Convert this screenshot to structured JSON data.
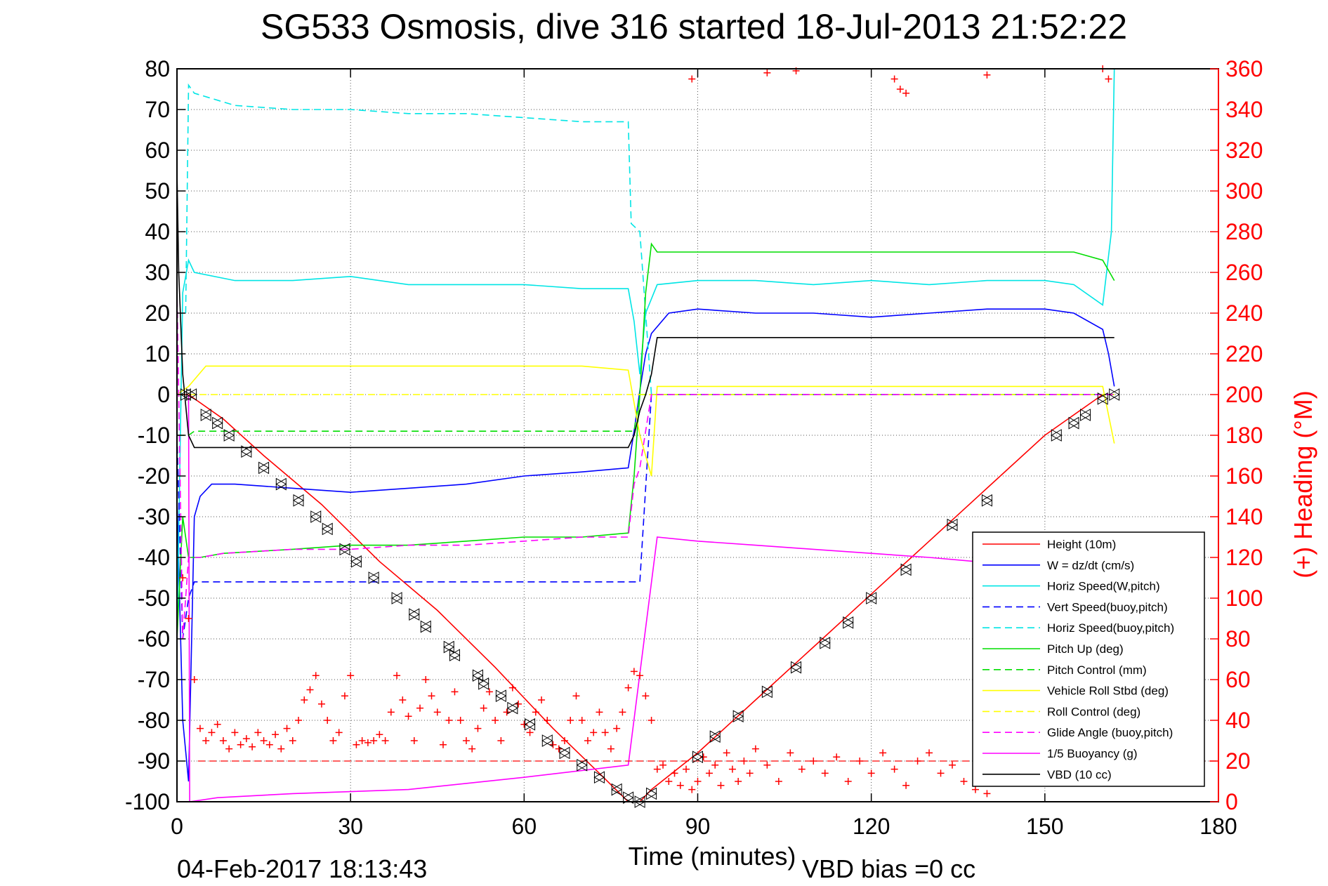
{
  "chart_data": {
    "type": "line",
    "title": "SG533 Osmosis, dive 316 started 18-Jul-2013 21:52:22",
    "xlabel": "Time (minutes)",
    "y2label": "(+) Heading (°M)",
    "timestamp": "04-Feb-2017 18:13:43",
    "vbd_bias": "VBD bias =0 cc",
    "xlim": [
      0,
      180
    ],
    "ylim": [
      -100,
      80
    ],
    "y2lim": [
      0,
      360
    ],
    "x_ticks": [
      "0",
      "30",
      "60",
      "90",
      "120",
      "150",
      "180"
    ],
    "y_ticks": [
      "80",
      "70",
      "60",
      "50",
      "40",
      "30",
      "20",
      "10",
      "0",
      "-10",
      "-20",
      "-30",
      "-40",
      "-50",
      "-60",
      "-70",
      "-80",
      "-90",
      "-100"
    ],
    "y2_ticks": [
      "360",
      "340",
      "320",
      "300",
      "280",
      "260",
      "240",
      "220",
      "200",
      "180",
      "160",
      "140",
      "120",
      "100",
      "80",
      "60",
      "40",
      "20",
      "0"
    ],
    "grid": true,
    "legend_position": "bottom-right",
    "colors": {
      "axis_right": "#ff0000",
      "height": "#ff0000",
      "w": "#0000ff",
      "horiz_w": "#00e5e5",
      "vert_buoy": "#0000ff",
      "horiz_buoy": "#00e5e5",
      "pitch_up": "#00dd00",
      "pitch_ctl": "#00dd00",
      "roll": "#ffff00",
      "roll_ctl": "#ffff00",
      "glide": "#ff00ff",
      "buoyancy": "#ff00ff",
      "vbd": "#000000"
    },
    "series": [
      {
        "name": "Height (10m)",
        "key": "height",
        "dash": false,
        "x": [
          0.5,
          2,
          8,
          15,
          25,
          35,
          45,
          55,
          65,
          73,
          78,
          80,
          82,
          90,
          100,
          110,
          120,
          130,
          140,
          150,
          160,
          162
        ],
        "y": [
          0,
          0,
          -6,
          -15,
          -27,
          -41,
          -53,
          -67,
          -82,
          -93,
          -100,
          -100,
          -97,
          -88,
          -75,
          -62,
          -49,
          -36,
          -23,
          -10,
          0,
          0
        ]
      },
      {
        "name": "W = dz/dt (cm/s)",
        "key": "w",
        "dash": false,
        "x": [
          0,
          1,
          2,
          3,
          4,
          6,
          10,
          20,
          30,
          40,
          50,
          60,
          70,
          78,
          79,
          80,
          81,
          82,
          85,
          90,
          100,
          110,
          120,
          130,
          140,
          150,
          155,
          160,
          161,
          162
        ],
        "y": [
          -25,
          -80,
          -95,
          -30,
          -25,
          -22,
          -22,
          -23,
          -24,
          -23,
          -22,
          -20,
          -19,
          -18,
          -9,
          1,
          10,
          15,
          20,
          21,
          20,
          20,
          19,
          20,
          21,
          21,
          20,
          16,
          10,
          2
        ]
      },
      {
        "name": "Horiz Speed(W,pitch)",
        "key": "horiz_w",
        "dash": false,
        "x": [
          0,
          1,
          2,
          3,
          10,
          20,
          30,
          40,
          50,
          60,
          70,
          78,
          79,
          80,
          81,
          83,
          90,
          100,
          110,
          120,
          130,
          140,
          150,
          155,
          160,
          161.5,
          162
        ],
        "y": [
          -60,
          25,
          33,
          30,
          28,
          28,
          29,
          27,
          27,
          27,
          26,
          26,
          18,
          5,
          20,
          27,
          28,
          28,
          27,
          28,
          27,
          28,
          28,
          27,
          22,
          40,
          80
        ]
      },
      {
        "name": "Vert Speed(buoy,pitch)",
        "key": "vert_buoy",
        "dash": true,
        "x": [
          0,
          1,
          2,
          3,
          6,
          20,
          30,
          40,
          50,
          60,
          70,
          78,
          80,
          82,
          162
        ],
        "y": [
          -10,
          -60,
          -50,
          -46,
          -46,
          -46,
          -46,
          -46,
          -46,
          -46,
          -46,
          -46,
          -46,
          0,
          0
        ]
      },
      {
        "name": "Horiz Speed(buoy,pitch)",
        "key": "horiz_buoy",
        "dash": true,
        "x": [
          1.5,
          2,
          3,
          10,
          20,
          30,
          40,
          50,
          60,
          70,
          78,
          78.5,
          80,
          82
        ],
        "y": [
          20,
          76,
          74,
          71,
          70,
          70,
          69,
          69,
          68,
          67,
          67,
          42,
          40,
          0
        ]
      },
      {
        "name": "Pitch Up (deg)",
        "key": "pitch_up",
        "dash": false,
        "x": [
          0,
          1,
          2,
          3,
          4,
          8,
          20,
          30,
          40,
          50,
          60,
          70,
          78,
          79,
          80,
          81,
          82,
          83,
          90,
          100,
          110,
          120,
          130,
          140,
          150,
          155,
          160,
          162
        ],
        "y": [
          -60,
          -30,
          -40,
          -40,
          -40,
          -39,
          -38,
          -37,
          -37,
          -36,
          -35,
          -35,
          -34,
          -20,
          0,
          25,
          37,
          35,
          35,
          35,
          35,
          35,
          35,
          35,
          35,
          35,
          33,
          28
        ]
      },
      {
        "name": "Pitch Control (mm)",
        "key": "pitch_ctl",
        "dash": true,
        "x": [
          0,
          2,
          3,
          10,
          20,
          30,
          40,
          50,
          60,
          70,
          78,
          79,
          80,
          82,
          162
        ],
        "y": [
          -10,
          -10,
          -9,
          -9,
          -9,
          -9,
          -9,
          -9,
          -9,
          -9,
          -9,
          -9,
          0,
          0,
          0
        ]
      },
      {
        "name": "Vehicle Roll Stbd (deg)",
        "key": "roll",
        "dash": false,
        "x": [
          0,
          2,
          5,
          10,
          20,
          30,
          40,
          50,
          60,
          70,
          78,
          80,
          82,
          83,
          90,
          100,
          110,
          120,
          130,
          140,
          150,
          160,
          162
        ],
        "y": [
          0,
          2,
          7,
          7,
          7,
          7,
          7,
          7,
          7,
          7,
          6,
          -10,
          -20,
          2,
          2,
          2,
          2,
          2,
          2,
          2,
          2,
          2,
          -12
        ]
      },
      {
        "name": "Roll Control (deg)",
        "key": "roll_ctl",
        "dash": true,
        "x": [
          0,
          2,
          5,
          10,
          20,
          30,
          40,
          50,
          60,
          70,
          78,
          80,
          82,
          162
        ],
        "y": [
          0,
          0,
          0,
          0,
          0,
          0,
          0,
          0,
          0,
          0,
          0,
          0,
          0,
          0
        ]
      },
      {
        "name": "Glide Angle (buoy,pitch)",
        "key": "glide",
        "dash": true,
        "x": [
          0,
          1,
          2,
          3,
          4,
          8,
          20,
          30,
          40,
          50,
          60,
          70,
          78,
          79,
          80,
          82,
          162
        ],
        "y": [
          26,
          -60,
          -40,
          -40,
          -40,
          -39,
          -38,
          -38,
          -37,
          -37,
          -36,
          -35,
          -35,
          -22,
          -18,
          0,
          0
        ]
      },
      {
        "name": "1/5 Buoyancy (g)",
        "key": "buoyancy",
        "dash": false,
        "x": [
          2,
          2.2,
          7,
          20,
          40,
          60,
          78,
          83,
          90,
          100,
          110,
          120,
          130,
          138
        ],
        "y": [
          0,
          -100,
          -99,
          -98,
          -97,
          -94,
          -91,
          -35,
          -36,
          -37,
          -38,
          -39,
          -40,
          -41
        ]
      },
      {
        "name": "VBD (10 cc)",
        "key": "vbd",
        "dash": false,
        "x": [
          0,
          0.3,
          1,
          2,
          3,
          10,
          20,
          30,
          40,
          50,
          60,
          70,
          78,
          79,
          80,
          81,
          82,
          83,
          90,
          100,
          110,
          120,
          130,
          140,
          150,
          162
        ],
        "y": [
          55,
          30,
          5,
          -10,
          -13,
          -13,
          -13,
          -13,
          -13,
          -13,
          -13,
          -13,
          -13,
          -10,
          -4,
          0,
          5,
          14,
          14,
          14,
          14,
          14,
          14,
          14,
          14,
          14
        ]
      }
    ],
    "heading": {
      "name": "Heading",
      "marker": "+",
      "reference_level": 20,
      "x": [
        1,
        2,
        3,
        4,
        5,
        6,
        7,
        8,
        9,
        10,
        11,
        12,
        13,
        14,
        15,
        16,
        17,
        18,
        19,
        20,
        21,
        22,
        23,
        24,
        25,
        26,
        27,
        28,
        29,
        30,
        31,
        32,
        33,
        34,
        35,
        36,
        37,
        38,
        39,
        40,
        41,
        42,
        43,
        44,
        45,
        46,
        47,
        48,
        49,
        50,
        51,
        52,
        53,
        54,
        55,
        56,
        57,
        58,
        59,
        60,
        61,
        62,
        63,
        64,
        65,
        66,
        67,
        68,
        69,
        70,
        71,
        72,
        73,
        74,
        75,
        76,
        77,
        78,
        79,
        80,
        81,
        82,
        83,
        84,
        85,
        86,
        87,
        88,
        89,
        90,
        91,
        92,
        93,
        94,
        95,
        96,
        97,
        98,
        99,
        100,
        102,
        104,
        106,
        108,
        110,
        112,
        114,
        116,
        118,
        120,
        122,
        124,
        126,
        128,
        130,
        132,
        134,
        136,
        138,
        140,
        89,
        102,
        107,
        124,
        125,
        126,
        140,
        160,
        161
      ],
      "y": [
        110,
        90,
        60,
        36,
        30,
        34,
        38,
        30,
        26,
        34,
        28,
        31,
        27,
        34,
        30,
        28,
        33,
        26,
        36,
        30,
        40,
        50,
        55,
        62,
        48,
        40,
        30,
        34,
        52,
        62,
        28,
        30,
        29,
        30,
        33,
        30,
        44,
        62,
        50,
        42,
        30,
        46,
        60,
        52,
        44,
        28,
        40,
        54,
        40,
        30,
        26,
        36,
        46,
        54,
        40,
        30,
        44,
        56,
        48,
        38,
        34,
        44,
        50,
        40,
        28,
        26,
        30,
        40,
        52,
        40,
        30,
        34,
        44,
        34,
        26,
        36,
        44,
        56,
        64,
        62,
        52,
        40,
        16,
        18,
        10,
        14,
        8,
        16,
        6,
        10,
        22,
        14,
        18,
        8,
        24,
        16,
        10,
        20,
        14,
        26,
        18,
        10,
        24,
        16,
        20,
        14,
        22,
        10,
        20,
        14,
        24,
        16,
        8,
        20,
        24,
        14,
        18,
        10,
        6,
        4,
        355,
        358,
        359,
        355,
        350,
        348,
        357,
        360,
        355
      ]
    },
    "markers": {
      "name": "Height markers",
      "x": [
        1.5,
        2.5,
        5,
        7,
        9,
        12,
        15,
        18,
        21,
        24,
        26,
        29,
        31,
        34,
        38,
        41,
        43,
        47,
        48,
        52,
        53,
        56,
        58,
        61,
        64,
        67,
        70,
        73,
        76,
        78,
        80,
        82,
        90,
        93,
        97,
        102,
        107,
        112,
        116,
        120,
        126,
        134,
        140,
        152,
        155,
        157,
        160,
        162
      ],
      "y": [
        0,
        0,
        -5,
        -7,
        -10,
        -14,
        -18,
        -22,
        -26,
        -30,
        -33,
        -38,
        -41,
        -45,
        -50,
        -54,
        -57,
        -62,
        -64,
        -69,
        -71,
        -74,
        -77,
        -81,
        -85,
        -88,
        -91,
        -94,
        -97,
        -99,
        -100,
        -98,
        -89,
        -84,
        -79,
        -73,
        -67,
        -61,
        -56,
        -50,
        -43,
        -32,
        -26,
        -10,
        -7,
        -5,
        -1,
        0
      ]
    },
    "legend": [
      {
        "label": "Height (10m)",
        "key": "height"
      },
      {
        "label": "W = dz/dt (cm/s)",
        "key": "w"
      },
      {
        "label": "Horiz Speed(W,pitch)",
        "key": "horiz_w"
      },
      {
        "label": "Vert Speed(buoy,pitch)",
        "key": "vert_buoy"
      },
      {
        "label": "Horiz Speed(buoy,pitch)",
        "key": "horiz_buoy"
      },
      {
        "label": "Pitch Up (deg)",
        "key": "pitch_up"
      },
      {
        "label": "Pitch Control (mm)",
        "key": "pitch_ctl"
      },
      {
        "label": "Vehicle Roll Stbd (deg)",
        "key": "roll"
      },
      {
        "label": "Roll Control (deg)",
        "key": "roll_ctl"
      },
      {
        "label": "Glide Angle (buoy,pitch)",
        "key": "glide"
      },
      {
        "label": "1/5 Buoyancy (g)",
        "key": "buoyancy"
      },
      {
        "label": "VBD (10 cc)",
        "key": "vbd"
      }
    ]
  }
}
